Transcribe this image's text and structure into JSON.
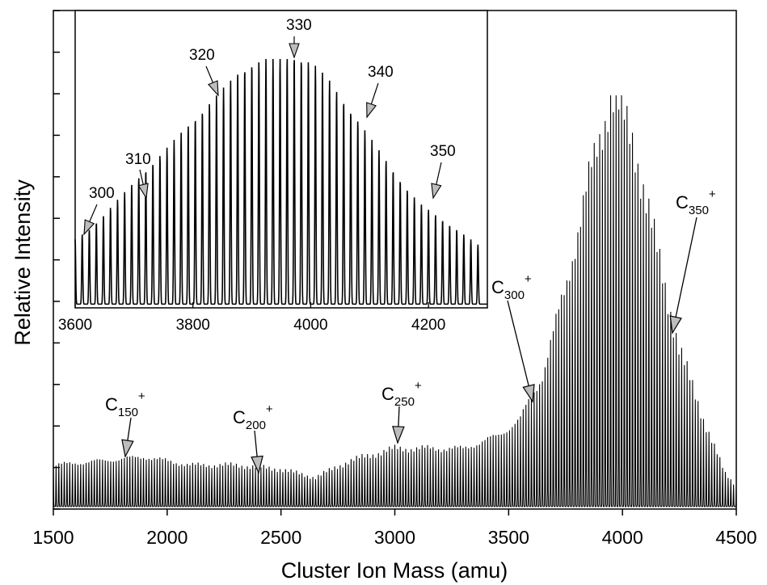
{
  "chart_data": [
    {
      "type": "line",
      "xlabel": "Cluster Ion Mass (amu)",
      "ylabel": "Relative Intensity",
      "xlim": [
        1500,
        4500
      ],
      "ylim": [
        0,
        100
      ],
      "x_ticks": [
        "1500",
        "2000",
        "2500",
        "3000",
        "3500",
        "4000",
        "4500"
      ],
      "y_tick_labels": "none",
      "peak_spacing_amu": 12,
      "series": [
        {
          "x": [
            1500,
            1700,
            1900,
            2100,
            2300,
            2500,
            2650,
            2800,
            3000,
            3150,
            3300,
            3450,
            3550,
            3650,
            3750,
            3850,
            3950,
            4050,
            4150,
            4250,
            4350,
            4450,
            4500
          ],
          "y": [
            10,
            11,
            12,
            10,
            10,
            9,
            7,
            11,
            14,
            14,
            14,
            17,
            21,
            32,
            53,
            78,
            100,
            88,
            62,
            38,
            22,
            8,
            5
          ]
        }
      ],
      "annotations": [
        {
          "base": "C",
          "sub": "150",
          "sup": "+",
          "x": 1800
        },
        {
          "base": "C",
          "sub": "200",
          "sup": "+",
          "x": 2400
        },
        {
          "base": "C",
          "sub": "250",
          "sup": "+",
          "x": 3000
        },
        {
          "base": "C",
          "sub": "300",
          "sup": "+",
          "x": 3600
        },
        {
          "base": "C",
          "sub": "350",
          "sup": "+",
          "x": 4200
        }
      ]
    },
    {
      "type": "line",
      "xlim": [
        3600,
        4300
      ],
      "ylim": [
        0,
        100
      ],
      "x_ticks": [
        "3600",
        "3800",
        "4000",
        "4200"
      ],
      "series": [
        {
          "n": [
            300,
            301,
            302,
            303,
            304,
            305,
            306,
            307,
            308,
            309,
            310,
            311,
            312,
            313,
            314,
            315,
            316,
            317,
            318,
            319,
            320,
            321,
            322,
            323,
            324,
            325,
            326,
            327,
            328,
            329,
            330,
            331,
            332,
            333,
            334,
            335,
            336,
            337,
            338,
            339,
            340,
            341,
            342,
            343,
            344,
            345,
            346,
            347,
            348,
            349,
            350,
            351,
            352,
            353,
            354,
            355,
            356,
            357
          ],
          "y": [
            26,
            28,
            30,
            33,
            36,
            39,
            42,
            45,
            48,
            51,
            54,
            57,
            60,
            63,
            66,
            69,
            72,
            75,
            78,
            81,
            84,
            87,
            90,
            93,
            95,
            97,
            98,
            99,
            99,
            100,
            100,
            100,
            99,
            98,
            96,
            93,
            90,
            86,
            82,
            78,
            74,
            70,
            66,
            62,
            58,
            54,
            50,
            46,
            43,
            40,
            38,
            36,
            34,
            32,
            30,
            28,
            26,
            24
          ]
        }
      ],
      "annotations": [
        {
          "text": "300",
          "x": 3600
        },
        {
          "text": "310",
          "x": 3720
        },
        {
          "text": "320",
          "x": 3840
        },
        {
          "text": "330",
          "x": 3960
        },
        {
          "text": "340",
          "x": 4080
        },
        {
          "text": "350",
          "x": 4200
        }
      ]
    }
  ]
}
